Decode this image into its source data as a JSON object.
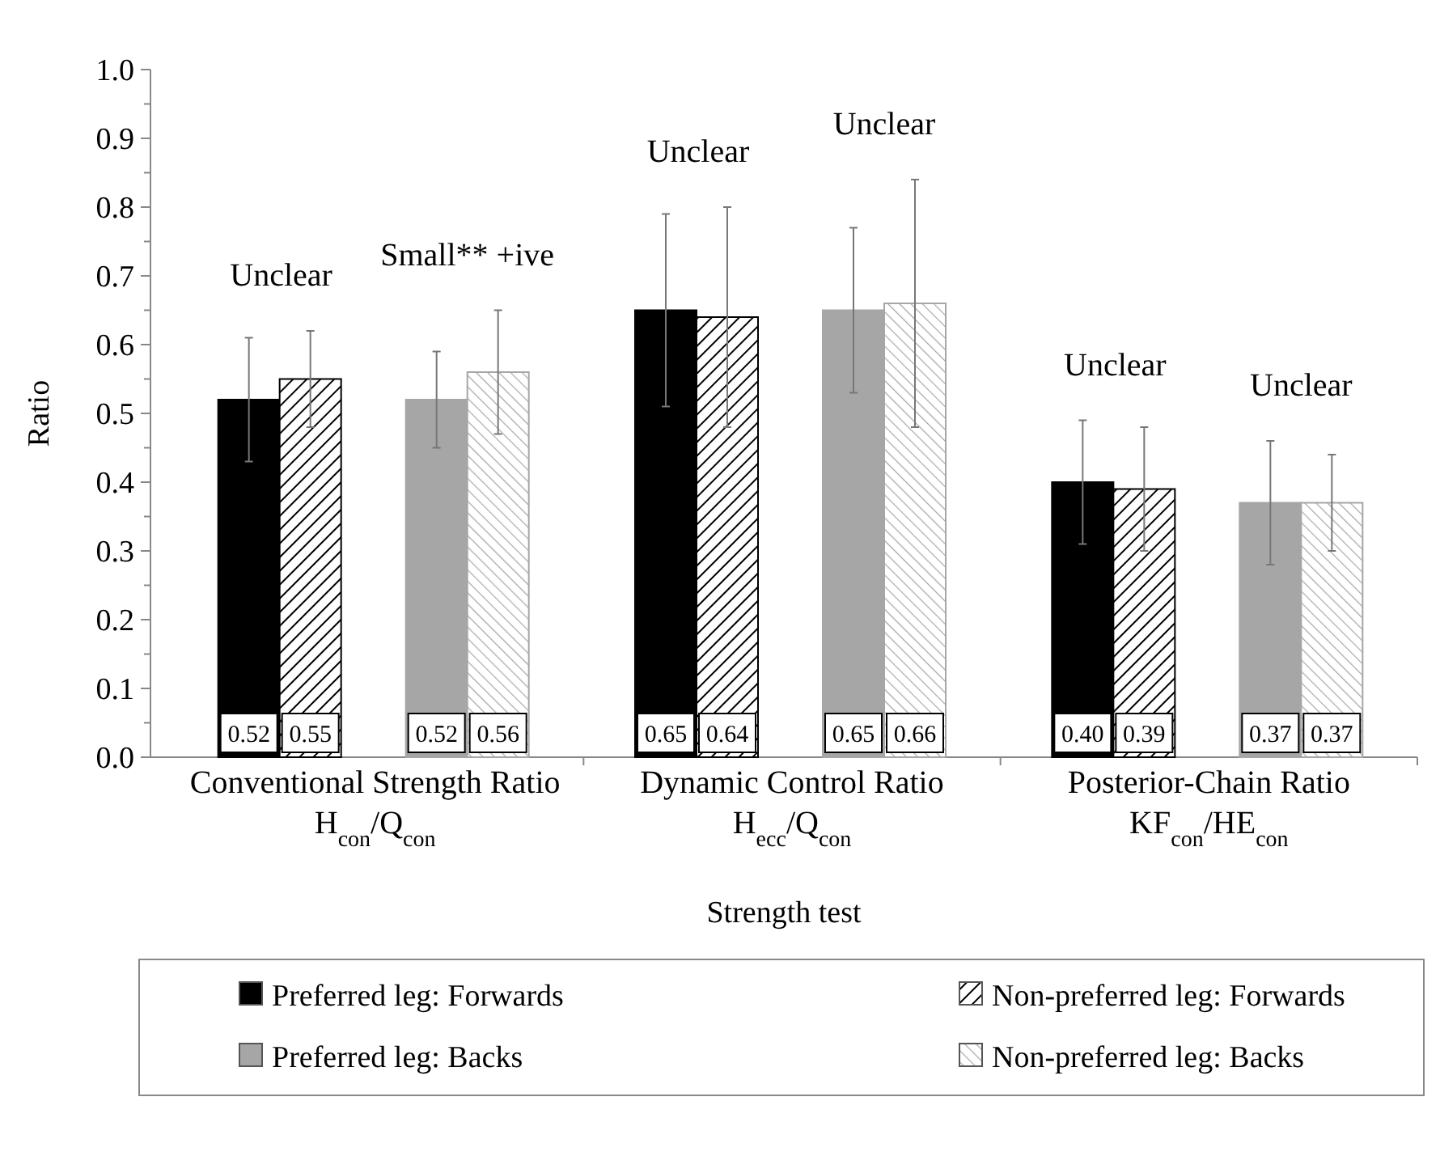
{
  "chart_data": {
    "type": "bar",
    "xlabel": "Strength test",
    "ylabel": "Ratio",
    "categories": [
      "Conventional Strength Ratio H$_{con}$/Q$_{con}$",
      "Dynamic Control Ratio H$_{ecc}$/Q$_{con}$",
      "Posterior-Chain Ratio KF$_{con}$/HE$_{con}$"
    ],
    "series": [
      {
        "name": "Preferred leg: Forwards",
        "color": "#000000",
        "values": [
          0.52,
          0.65,
          0.4
        ],
        "errors": [
          [
            0.43,
            0.61
          ],
          [
            0.51,
            0.79
          ],
          [
            0.31,
            0.49
          ]
        ],
        "value_labels": [
          "0.52",
          "0.65",
          "0.40"
        ]
      },
      {
        "name": "Non-preferred leg: Forwards",
        "color": "#000000",
        "values": [
          0.55,
          0.64,
          0.39
        ],
        "errors": [
          [
            0.48,
            0.62
          ],
          [
            0.48,
            0.8
          ],
          [
            0.3,
            0.48
          ]
        ],
        "value_labels": [
          "0.55",
          "0.64",
          "0.39"
        ]
      },
      {
        "name": "Preferred leg: Backs",
        "color": "#a6a6a6",
        "values": [
          0.52,
          0.65,
          0.37
        ],
        "errors": [
          [
            0.45,
            0.59
          ],
          [
            0.53,
            0.77
          ],
          [
            0.28,
            0.46
          ]
        ],
        "value_labels": [
          "0.52",
          "0.65",
          "0.37"
        ]
      },
      {
        "name": "Non-preferred leg: Backs",
        "color": "#a6a6a6",
        "values": [
          0.56,
          0.66,
          0.37
        ],
        "errors": [
          [
            0.47,
            0.65
          ],
          [
            0.48,
            0.84
          ],
          [
            0.3,
            0.44
          ]
        ],
        "value_labels": [
          "0.56",
          "0.66",
          "0.37"
        ]
      }
    ],
    "annotations": [
      "Unclear",
      "Small** +ive",
      "Unclear",
      "Unclear",
      "Unclear",
      "Unclear"
    ],
    "ylim": [
      0,
      1
    ],
    "yticks": [
      {
        "value": 0,
        "label": "0.0"
      },
      {
        "value": 0.05,
        "label": null
      },
      {
        "value": 0.1,
        "label": "0.1"
      },
      {
        "value": 0.15,
        "label": null
      },
      {
        "value": 0.2,
        "label": "0.2"
      },
      {
        "value": 0.25,
        "label": null
      },
      {
        "value": 0.3,
        "label": "0.3"
      },
      {
        "value": 0.35,
        "label": null
      },
      {
        "value": 0.4,
        "label": "0.4"
      },
      {
        "value": 0.45,
        "label": null
      },
      {
        "value": 0.5,
        "label": "0.5"
      },
      {
        "value": 0.55,
        "label": null
      },
      {
        "value": 0.6,
        "label": "0.6"
      },
      {
        "value": 0.65,
        "label": null
      },
      {
        "value": 0.7,
        "label": "0.7"
      },
      {
        "value": 0.75,
        "label": null
      },
      {
        "value": 0.8,
        "label": "0.8"
      },
      {
        "value": 0.85,
        "label": null
      },
      {
        "value": 0.9,
        "label": "0.9"
      },
      {
        "value": 0.95,
        "label": null
      },
      {
        "value": 1,
        "label": "1.0"
      }
    ],
    "grid": false,
    "legend": "bottom"
  }
}
